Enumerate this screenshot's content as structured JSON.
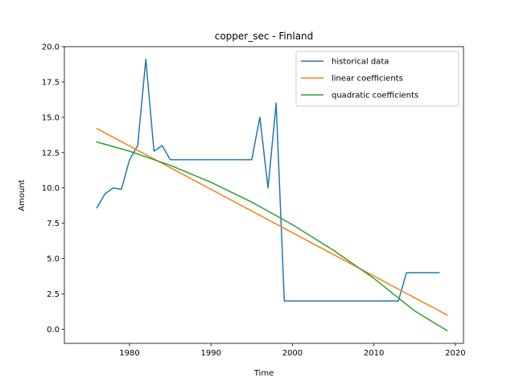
{
  "chart_data": {
    "type": "line",
    "title": "copper_sec - Finland",
    "xlabel": "Time",
    "ylabel": "Amount",
    "xlim": [
      1972,
      2021
    ],
    "ylim": [
      -1.0,
      20.0
    ],
    "xticks": [
      1980,
      1990,
      2000,
      2010,
      2020
    ],
    "yticks": [
      0.0,
      2.5,
      5.0,
      7.5,
      10.0,
      12.5,
      15.0,
      17.5,
      20.0
    ],
    "xtick_labels": [
      "1980",
      "1990",
      "2000",
      "2010",
      "2020"
    ],
    "ytick_labels": [
      "0.0",
      "2.5",
      "5.0",
      "7.5",
      "10.0",
      "12.5",
      "15.0",
      "17.5",
      "20.0"
    ],
    "grid": false,
    "legend_position": "top-right",
    "series": [
      {
        "name": "historical data",
        "color": "#1f77b4",
        "x": [
          1976,
          1977,
          1978,
          1979,
          1980,
          1981,
          1982,
          1983,
          1984,
          1985,
          1986,
          1987,
          1988,
          1989,
          1990,
          1991,
          1992,
          1993,
          1994,
          1995,
          1996,
          1997,
          1998,
          1999,
          2000,
          2001,
          2002,
          2003,
          2004,
          2005,
          2006,
          2007,
          2008,
          2009,
          2010,
          2011,
          2012,
          2013,
          2014,
          2015,
          2016,
          2017,
          2018
        ],
        "y": [
          8.6,
          9.6,
          10.0,
          9.9,
          12.0,
          13.0,
          19.1,
          12.6,
          13.0,
          12.0,
          12.0,
          12.0,
          12.0,
          12.0,
          12.0,
          12.0,
          12.0,
          12.0,
          12.0,
          12.0,
          15.0,
          10.0,
          16.0,
          2.0,
          2.0,
          2.0,
          2.0,
          2.0,
          2.0,
          2.0,
          2.0,
          2.0,
          2.0,
          2.0,
          2.0,
          2.0,
          2.0,
          2.0,
          4.0,
          4.0,
          4.0,
          4.0,
          4.0
        ]
      },
      {
        "name": "linear coefficients",
        "color": "#ff7f0e",
        "x": [
          1976,
          2019
        ],
        "y": [
          14.2,
          1.0
        ]
      },
      {
        "name": "quadratic coefficients",
        "color": "#2ca02c",
        "x": [
          1976,
          1980,
          1985,
          1990,
          1995,
          2000,
          2005,
          2010,
          2015,
          2019
        ],
        "y": [
          13.25,
          12.6,
          11.6,
          10.4,
          9.0,
          7.4,
          5.6,
          3.6,
          1.3,
          -0.1
        ]
      }
    ]
  }
}
